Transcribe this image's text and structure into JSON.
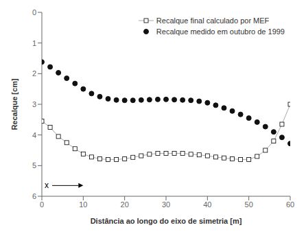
{
  "chart_data": {
    "type": "line",
    "xlabel": "Distância ao longo do eixo de simetria [m]",
    "ylabel": "Recalque [cm]",
    "xlim": [
      0,
      60
    ],
    "ylim": [
      6,
      0
    ],
    "xticks": [
      0,
      10,
      20,
      30,
      40,
      50,
      60
    ],
    "yticks": [
      0,
      1,
      2,
      3,
      4,
      5,
      6
    ],
    "grid": false,
    "legend": "upper right",
    "x": [
      0,
      2,
      4,
      6,
      8,
      10,
      12,
      14,
      16,
      18,
      20,
      22,
      24,
      26,
      28,
      30,
      32,
      34,
      36,
      38,
      40,
      42,
      44,
      46,
      48,
      50,
      52,
      54,
      56,
      58,
      60
    ],
    "series": [
      {
        "name": "Recalque final calculado por MEF",
        "color": "#aaaaaa",
        "marker": "square",
        "line_style": "solid",
        "values": [
          3.55,
          3.75,
          4.05,
          4.25,
          4.45,
          4.62,
          4.72,
          4.78,
          4.8,
          4.8,
          4.78,
          4.73,
          4.68,
          4.63,
          4.6,
          4.6,
          4.6,
          4.6,
          4.63,
          4.65,
          4.68,
          4.72,
          4.75,
          4.78,
          4.8,
          4.8,
          4.7,
          4.5,
          4.2,
          3.65,
          3.0
        ]
      },
      {
        "name": "Recalque medido em outubro de 1999",
        "color": "#111111",
        "marker": "circle",
        "line_style": "none",
        "values": [
          1.62,
          1.78,
          1.97,
          2.15,
          2.32,
          2.5,
          2.65,
          2.75,
          2.82,
          2.86,
          2.87,
          2.87,
          2.86,
          2.85,
          2.84,
          2.84,
          2.85,
          2.86,
          2.87,
          2.9,
          2.95,
          3.03,
          3.12,
          3.22,
          3.33,
          3.45,
          3.58,
          3.73,
          3.9,
          4.08,
          4.28
        ]
      }
    ],
    "annotations": [
      {
        "text": "x",
        "x": 2.5,
        "y": 5.65,
        "x_end": 10
      }
    ]
  }
}
